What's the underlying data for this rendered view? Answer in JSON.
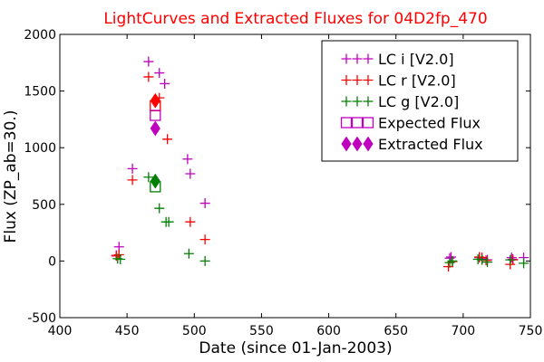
{
  "chart_data": {
    "type": "scatter",
    "title": "LightCurves and Extracted Fluxes for 04D2fp_470",
    "xlabel": "Date (since 01-Jan-2003)",
    "ylabel": "Flux (ZP_ab=30.)",
    "xlim": [
      400,
      750
    ],
    "ylim": [
      -500,
      2000
    ],
    "xticks": [
      "400",
      "450",
      "500",
      "550",
      "600",
      "650",
      "700",
      "750"
    ],
    "yticks": [
      "-500",
      "0",
      "500",
      "1000",
      "1500",
      "2000"
    ],
    "grid": false,
    "legend_position": "top-right",
    "colors": {
      "title": "#ff0000",
      "lc_i": "#bf00bf",
      "lc_r": "#ff0000",
      "lc_g": "#008000"
    },
    "series": [
      {
        "name": "LC i [V2.0]",
        "marker": "plus",
        "color": "#bf00bf",
        "points": [
          [
            442,
            50
          ],
          [
            444,
            125
          ],
          [
            454,
            815
          ],
          [
            466,
            1760
          ],
          [
            474,
            1660
          ],
          [
            478,
            1565
          ],
          [
            495,
            900
          ],
          [
            497,
            770
          ],
          [
            508,
            510
          ],
          [
            690,
            25
          ],
          [
            691,
            35
          ],
          [
            712,
            30
          ],
          [
            714,
            20
          ],
          [
            718,
            10
          ],
          [
            736,
            30
          ],
          [
            737,
            15
          ],
          [
            745,
            30
          ]
        ]
      },
      {
        "name": "LC r [V2.0]",
        "marker": "plus",
        "color": "#ff0000",
        "points": [
          [
            442,
            45
          ],
          [
            444,
            55
          ],
          [
            454,
            715
          ],
          [
            466,
            1625
          ],
          [
            474,
            1440
          ],
          [
            480,
            1075
          ],
          [
            497,
            345
          ],
          [
            508,
            190
          ],
          [
            689,
            -50
          ],
          [
            692,
            -5
          ],
          [
            712,
            35
          ],
          [
            714,
            30
          ],
          [
            717,
            5
          ],
          [
            735,
            -30
          ],
          [
            737,
            10
          ]
        ]
      },
      {
        "name": "LC g [V2.0]",
        "marker": "plus",
        "color": "#008000",
        "points": [
          [
            443,
            20
          ],
          [
            445,
            15
          ],
          [
            466,
            740
          ],
          [
            474,
            465
          ],
          [
            479,
            345
          ],
          [
            481,
            345
          ],
          [
            496,
            65
          ],
          [
            508,
            0
          ],
          [
            690,
            -15
          ],
          [
            692,
            0
          ],
          [
            711,
            15
          ],
          [
            714,
            10
          ],
          [
            718,
            -10
          ],
          [
            735,
            10
          ],
          [
            745,
            -20
          ]
        ]
      },
      {
        "name": "Expected Flux",
        "marker": "square-open",
        "points": [
          {
            "x": 471,
            "y": 1370,
            "color": "#ff0000"
          },
          {
            "x": 471,
            "y": 1285,
            "color": "#bf00bf"
          },
          {
            "x": 471,
            "y": 655,
            "color": "#008000"
          }
        ]
      },
      {
        "name": "Extracted Flux",
        "marker": "diamond",
        "points": [
          {
            "x": 471,
            "y": 1415,
            "color": "#ff0000"
          },
          {
            "x": 471,
            "y": 1170,
            "color": "#bf00bf"
          },
          {
            "x": 471,
            "y": 705,
            "color": "#008000"
          }
        ]
      }
    ],
    "legend": [
      {
        "label": "LC i [V2.0]",
        "marker": "plus",
        "color": "#bf00bf"
      },
      {
        "label": "LC r [V2.0]",
        "marker": "plus",
        "color": "#ff0000"
      },
      {
        "label": "LC g [V2.0]",
        "marker": "plus",
        "color": "#008000"
      },
      {
        "label": "Expected Flux",
        "marker": "square-open",
        "color": "#bf00bf"
      },
      {
        "label": "Extracted Flux",
        "marker": "diamond",
        "color": "#bf00bf"
      }
    ]
  }
}
